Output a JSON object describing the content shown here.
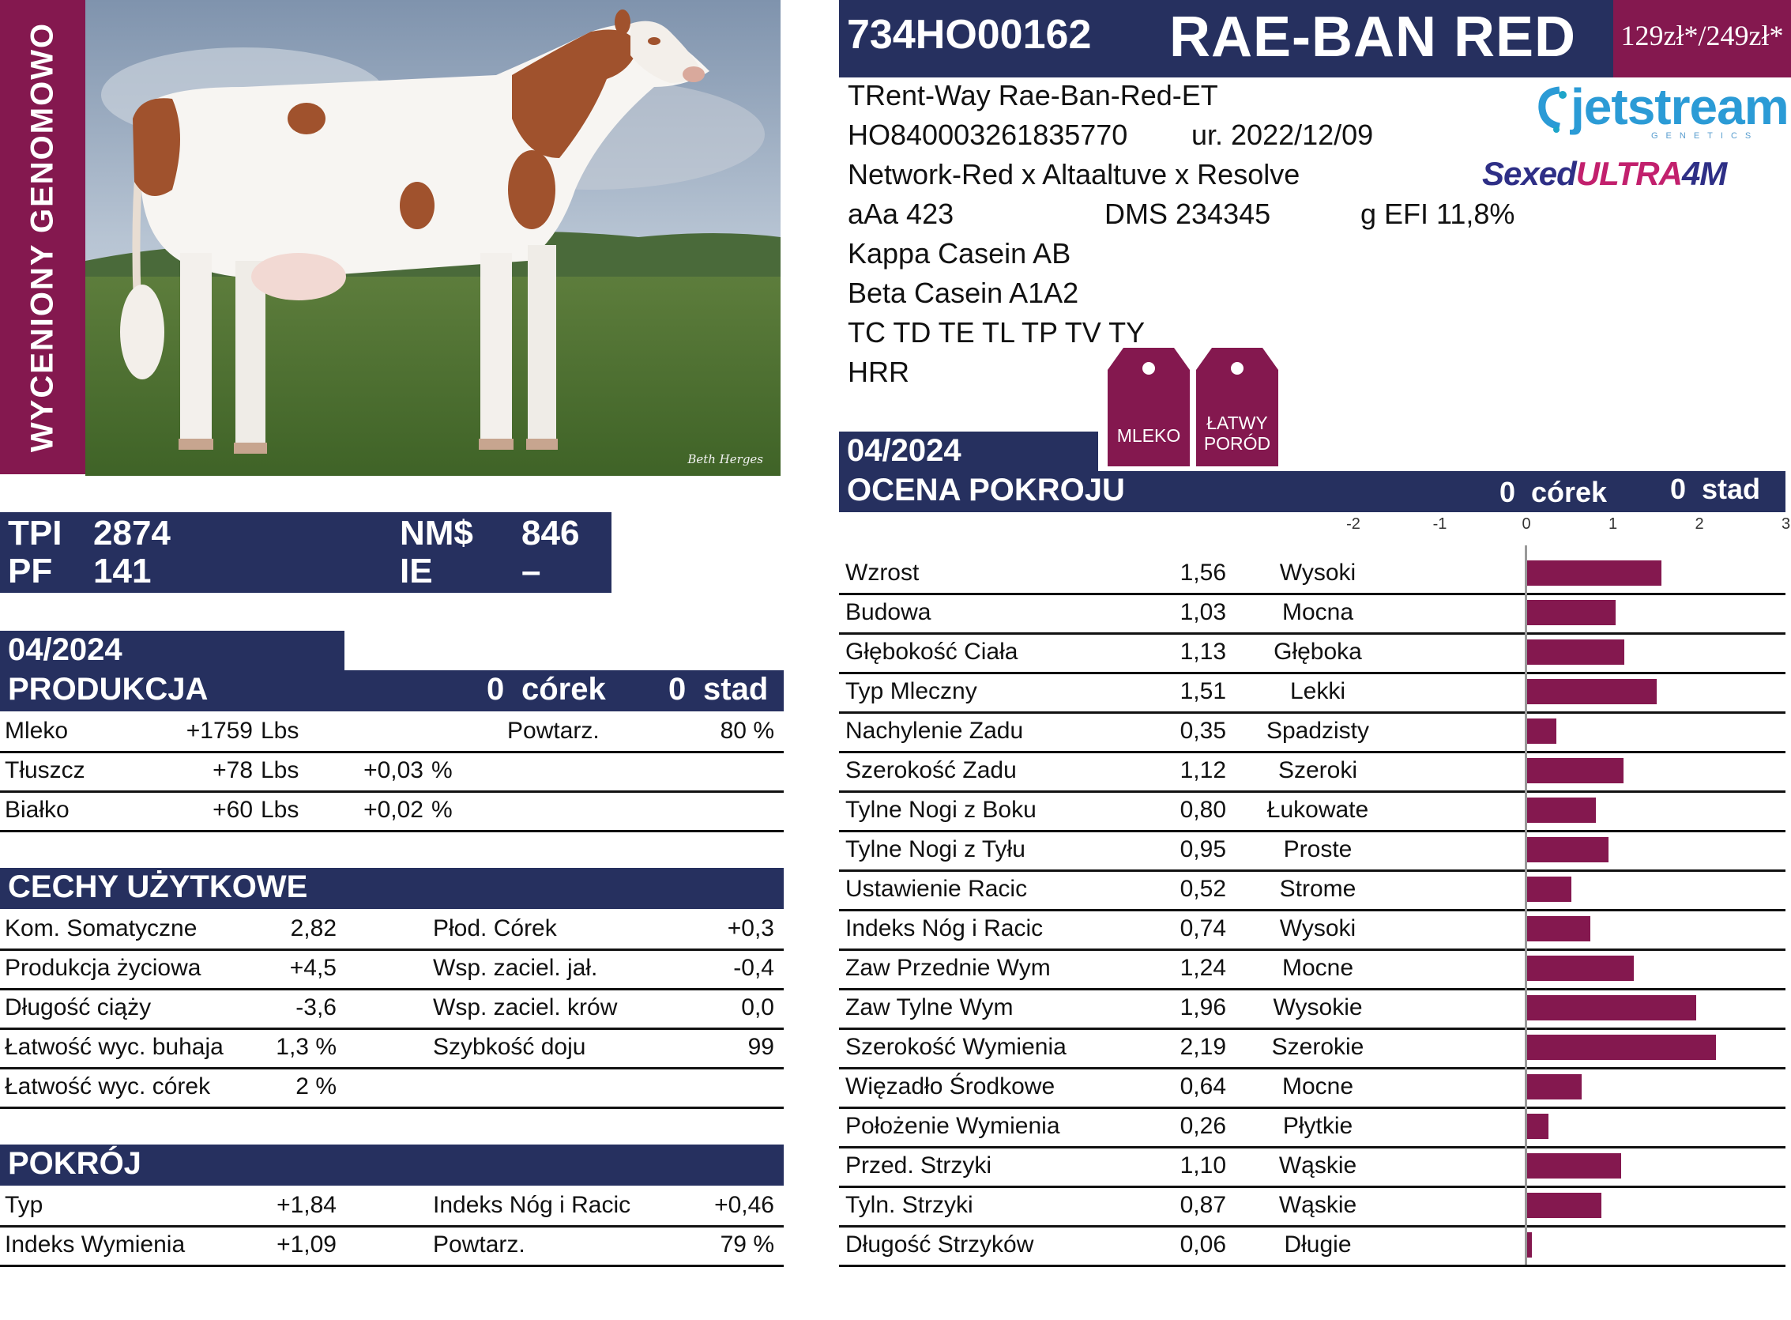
{
  "banner": "WYCENIONY GENOMOWO",
  "photo": {
    "credit": "Beth Herges"
  },
  "header": {
    "code": "734HO00162",
    "name": "RAE-BAN RED",
    "price": "129zł*/249zł*"
  },
  "info": {
    "full_name": "TRent-Way Rae-Ban-Red-ET",
    "reg": "HO840003261835770",
    "born": "ur. 2022/12/09",
    "pedigree": "Network-Red x Altaaltuve x Resolve",
    "aaa": "aAa 423",
    "dms": "DMS 234345",
    "efi": "g EFI 11,8%",
    "kappa": "Kappa Casein AB",
    "beta": "Beta Casein A1A2",
    "haplo": "TC TD TE TL TP TV TY",
    "hrr": "HRR"
  },
  "logos": {
    "jetstream": "jetstream",
    "jetstream_sub": "GENETICS",
    "sexed_a": "Sexed",
    "sexed_b": "ULTRA",
    "sexed_c": "4M"
  },
  "tags": [
    {
      "line1": "MLEKO",
      "line2": ""
    },
    {
      "line1": "ŁATWY",
      "line2": "PORÓD"
    }
  ],
  "indexes": {
    "tpi_label": "TPI",
    "tpi": "2874",
    "nm_label": "NM$",
    "nm": "846",
    "pf_label": "PF",
    "pf": "141",
    "ie_label": "IE",
    "ie": "–"
  },
  "production": {
    "date": "04/2024",
    "title": "PRODUKCJA",
    "daughters_num": "0",
    "daughters_label": "córek",
    "herds_num": "0",
    "herds_label": "stad",
    "rows": [
      {
        "label": "Mleko",
        "value": "+1759",
        "unit": "Lbs",
        "pct": "",
        "pct_unit": "",
        "extra_label": "Powtarz.",
        "extra_value": "80 %"
      },
      {
        "label": "Tłuszcz",
        "value": "+78",
        "unit": "Lbs",
        "pct": "+0,03",
        "pct_unit": "%",
        "extra_label": "",
        "extra_value": ""
      },
      {
        "label": "Białko",
        "value": "+60",
        "unit": "Lbs",
        "pct": "+0,02",
        "pct_unit": "%",
        "extra_label": "",
        "extra_value": ""
      }
    ]
  },
  "traits": {
    "title": "CECHY UŻYTKOWE",
    "rows": [
      {
        "l1": "Kom. Somatyczne",
        "v1": "2,82",
        "l2": "Płod. Córek",
        "v2": "+0,3"
      },
      {
        "l1": "Produkcja życiowa",
        "v1": "+4,5",
        "l2": "Wsp. zaciel. jał.",
        "v2": "-0,4"
      },
      {
        "l1": "Długość ciąży",
        "v1": "-3,6",
        "l2": "Wsp. zaciel. krów",
        "v2": "0,0"
      },
      {
        "l1": "Łatwość wyc. buhaja",
        "v1": "1,3 %",
        "l2": "Szybkość doju",
        "v2": "99"
      },
      {
        "l1": "Łatwość wyc. córek",
        "v1": "2 %",
        "l2": "",
        "v2": ""
      }
    ]
  },
  "conformation": {
    "title": "POKRÓJ",
    "rows": [
      {
        "l1": "Typ",
        "v1": "+1,84",
        "l2": "Indeks Nóg i Racic",
        "v2": "+0,46"
      },
      {
        "l1": "Indeks Wymienia",
        "v1": "+1,09",
        "l2": "Powtarz.",
        "v2": "79 %"
      }
    ]
  },
  "type_eval": {
    "date": "04/2024",
    "title": "OCENA POKROJU",
    "daughters_num": "0",
    "daughters_label": "córek",
    "herds_num": "0",
    "herds_label": "stad"
  },
  "chart_data": {
    "type": "bar",
    "xlim": [
      -2,
      3
    ],
    "ticks": [
      "-2",
      "-1",
      "0",
      "1",
      "2",
      "3"
    ],
    "rows": [
      {
        "trait": "Wzrost",
        "value": 1.56,
        "value_text": "1,56",
        "desc": "Wysoki"
      },
      {
        "trait": "Budowa",
        "value": 1.03,
        "value_text": "1,03",
        "desc": "Mocna"
      },
      {
        "trait": "Głębokość Ciała",
        "value": 1.13,
        "value_text": "1,13",
        "desc": "Głęboka"
      },
      {
        "trait": "Typ Mleczny",
        "value": 1.51,
        "value_text": "1,51",
        "desc": "Lekki"
      },
      {
        "trait": "Nachylenie Zadu",
        "value": 0.35,
        "value_text": "0,35",
        "desc": "Spadzisty"
      },
      {
        "trait": "Szerokość Zadu",
        "value": 1.12,
        "value_text": "1,12",
        "desc": "Szeroki"
      },
      {
        "trait": "Tylne Nogi z Boku",
        "value": 0.8,
        "value_text": "0,80",
        "desc": "Łukowate"
      },
      {
        "trait": "Tylne Nogi z Tyłu",
        "value": 0.95,
        "value_text": "0,95",
        "desc": "Proste"
      },
      {
        "trait": "Ustawienie Racic",
        "value": 0.52,
        "value_text": "0,52",
        "desc": "Strome"
      },
      {
        "trait": "Indeks Nóg i Racic",
        "value": 0.74,
        "value_text": "0,74",
        "desc": "Wysoki"
      },
      {
        "trait": "Zaw Przednie Wym",
        "value": 1.24,
        "value_text": "1,24",
        "desc": "Mocne"
      },
      {
        "trait": "Zaw Tylne Wym",
        "value": 1.96,
        "value_text": "1,96",
        "desc": "Wysokie"
      },
      {
        "trait": "Szerokość Wymienia",
        "value": 2.19,
        "value_text": "2,19",
        "desc": "Szerokie"
      },
      {
        "trait": "Więzadło Środkowe",
        "value": 0.64,
        "value_text": "0,64",
        "desc": "Mocne"
      },
      {
        "trait": "Położenie Wymienia",
        "value": 0.26,
        "value_text": "0,26",
        "desc": "Płytkie"
      },
      {
        "trait": "Przed. Strzyki",
        "value": 1.1,
        "value_text": "1,10",
        "desc": "Wąskie"
      },
      {
        "trait": "Tyln. Strzyki",
        "value": 0.87,
        "value_text": "0,87",
        "desc": "Wąskie"
      },
      {
        "trait": "Długość Strzyków",
        "value": 0.06,
        "value_text": "0,06",
        "desc": "Długie"
      }
    ]
  },
  "colors": {
    "navy": "#26305f",
    "maroon": "#84184f",
    "jetstream": "#2b9bd6"
  }
}
